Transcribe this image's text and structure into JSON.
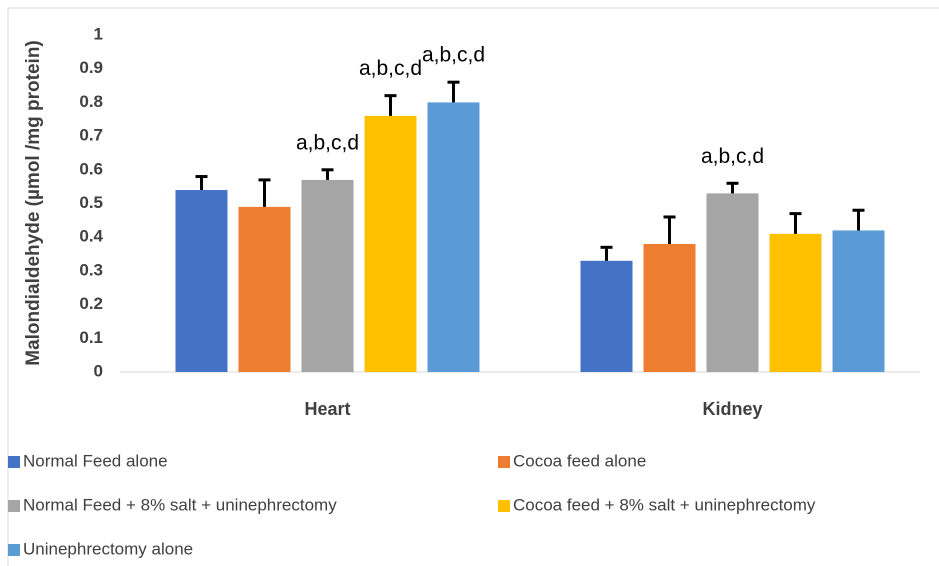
{
  "chart_data": {
    "type": "bar",
    "y_label": "Malondialdehyde (µmol /mg protein)",
    "categories": [
      "Heart",
      "Kidney"
    ],
    "series": [
      {
        "name": "Normal Feed alone",
        "color": "#4472c4",
        "values": [
          0.54,
          0.33
        ],
        "errors": [
          0.04,
          0.04
        ]
      },
      {
        "name": "Cocoa feed alone",
        "color": "#ed7d31",
        "values": [
          0.49,
          0.38
        ],
        "errors": [
          0.08,
          0.08
        ]
      },
      {
        "name": "Normal Feed + 8% salt + uninephrectomy",
        "color": "#a5a5a5",
        "values": [
          0.57,
          0.53
        ],
        "errors": [
          0.03,
          0.03
        ],
        "annotations": [
          "a,b,c,d",
          "a,b,c,d"
        ]
      },
      {
        "name": "Cocoa feed + 8% salt + uninephrectomy",
        "color": "#ffc000",
        "values": [
          0.76,
          0.41
        ],
        "errors": [
          0.06,
          0.06
        ],
        "annotations": [
          "a,b,c,d",
          null
        ]
      },
      {
        "name": "Uninephrectomy alone",
        "color": "#5b9bd5",
        "values": [
          0.8,
          0.42
        ],
        "errors": [
          0.06,
          0.06
        ],
        "annotations": [
          "a,b,c,d",
          null
        ]
      }
    ],
    "ylim": [
      0,
      1
    ],
    "yticks": [
      0,
      0.1,
      0.2,
      0.3,
      0.4,
      0.5,
      0.6,
      0.7,
      0.8,
      0.9,
      1
    ],
    "grid": false,
    "legend": "bottom"
  }
}
